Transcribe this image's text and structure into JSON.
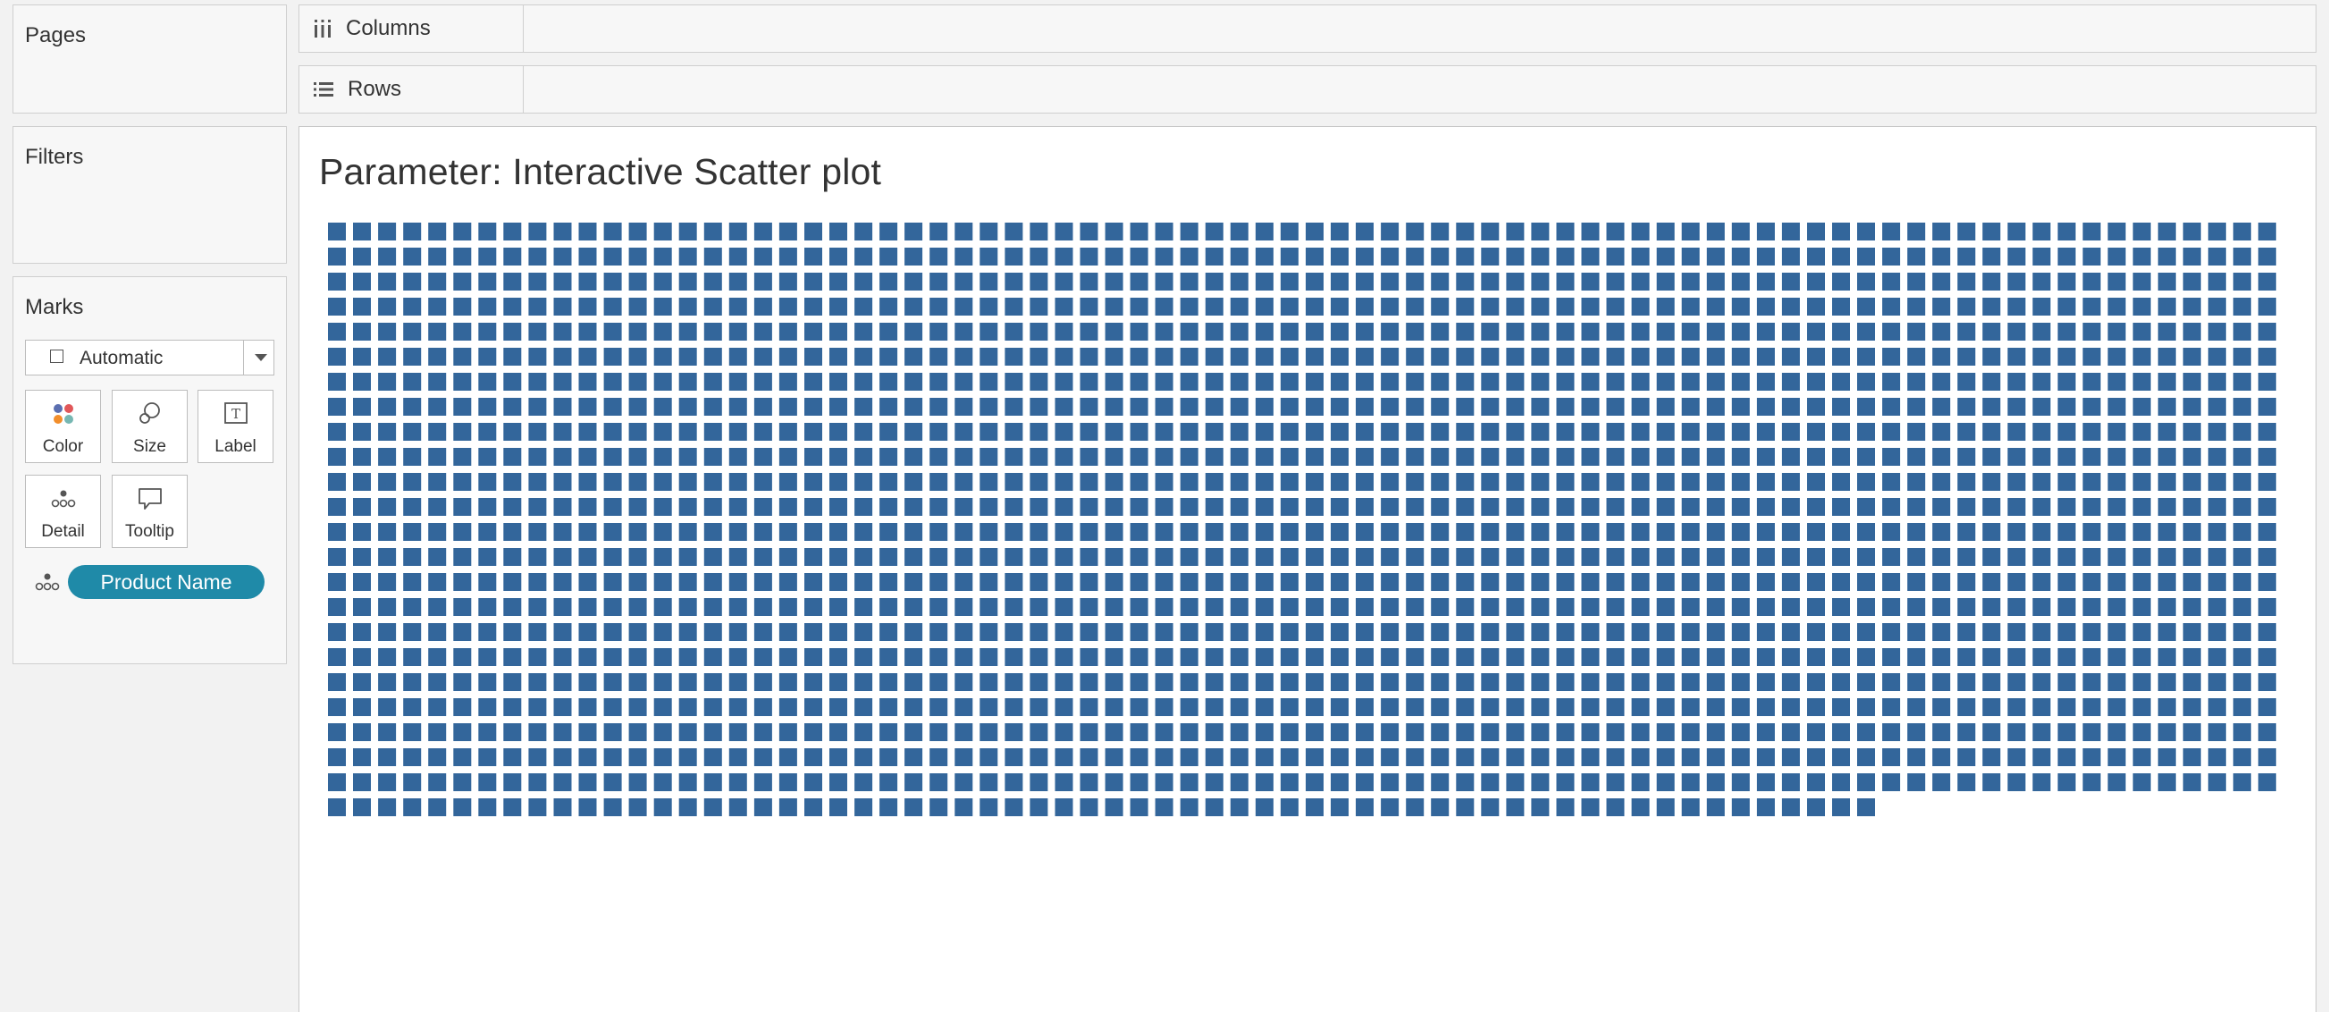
{
  "cards": {
    "pages": "Pages",
    "filters": "Filters",
    "marks": "Marks"
  },
  "shelves": {
    "columns": "Columns",
    "rows": "Rows"
  },
  "marks": {
    "mark_type": "Automatic",
    "buttons": {
      "color": "Color",
      "size": "Size",
      "label": "Label",
      "detail": "Detail",
      "tooltip": "Tooltip"
    },
    "pill": "Product Name"
  },
  "view": {
    "title": "Parameter: Interactive Scatter plot"
  },
  "colors": {
    "mark": "#33669b",
    "pill": "#1f8aa8"
  },
  "chart_data": {
    "type": "scatter",
    "title": "Parameter: Interactive Scatter plot",
    "mark_shape": "square",
    "layout": "grid of one mark per Product Name",
    "columns_per_row": 78,
    "full_rows": 23,
    "last_row_marks": 62,
    "total_marks": 1856
  }
}
